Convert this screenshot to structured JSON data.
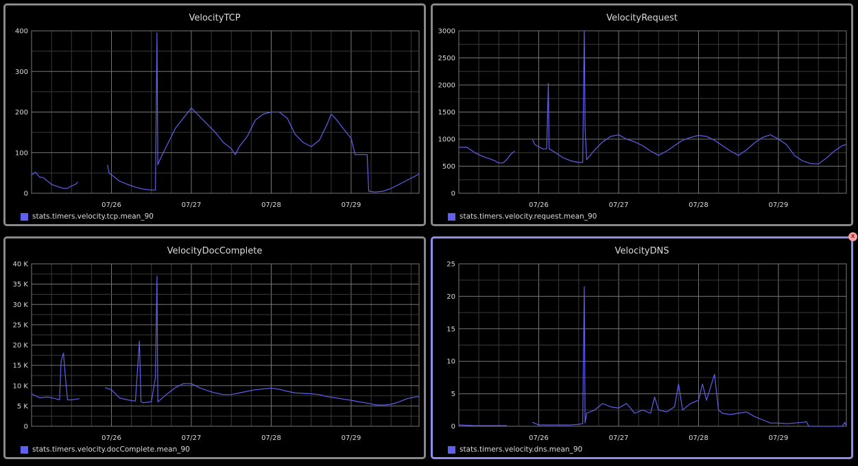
{
  "colors": {
    "series": "#6060f0",
    "grid": "#555555",
    "text": "#dcdcdc",
    "border": "#8a8a8a",
    "border_active": "#8f8fee"
  },
  "close_icon": "close-icon",
  "chart_data": [
    {
      "type": "line",
      "title": "VelocityTCP",
      "legend": "stats.timers.velocity.tcp.mean_90",
      "xticks": [
        "07/26",
        "07/27",
        "07/28",
        "07/29"
      ],
      "yticks": [
        "0",
        "100",
        "200",
        "300",
        "400"
      ],
      "ylim": [
        0,
        400
      ],
      "xrange_days": [
        25.0,
        29.85
      ],
      "grid": true,
      "series": [
        {
          "values": [
            [
              25.0,
              45
            ],
            [
              25.05,
              52
            ],
            [
              25.1,
              40
            ],
            [
              25.15,
              38
            ],
            [
              25.2,
              30
            ],
            [
              25.25,
              22
            ],
            [
              25.3,
              18
            ],
            [
              25.35,
              15
            ],
            [
              25.4,
              12
            ],
            [
              25.45,
              12
            ],
            [
              25.5,
              18
            ],
            [
              25.55,
              22
            ],
            [
              25.58,
              28
            ],
            [
              25.6,
              null
            ],
            [
              25.95,
              70
            ],
            [
              25.97,
              50
            ],
            [
              26.05,
              38
            ],
            [
              26.1,
              30
            ],
            [
              26.2,
              22
            ],
            [
              26.3,
              15
            ],
            [
              26.4,
              10
            ],
            [
              26.5,
              8
            ],
            [
              26.55,
              8
            ],
            [
              26.57,
              395
            ],
            [
              26.58,
              70
            ],
            [
              26.6,
              80
            ],
            [
              26.7,
              120
            ],
            [
              26.8,
              160
            ],
            [
              26.9,
              185
            ],
            [
              27.0,
              210
            ],
            [
              27.1,
              190
            ],
            [
              27.2,
              170
            ],
            [
              27.3,
              150
            ],
            [
              27.4,
              125
            ],
            [
              27.5,
              110
            ],
            [
              27.55,
              95
            ],
            [
              27.6,
              115
            ],
            [
              27.7,
              140
            ],
            [
              27.8,
              180
            ],
            [
              27.9,
              195
            ],
            [
              28.0,
              200
            ],
            [
              28.1,
              200
            ],
            [
              28.2,
              185
            ],
            [
              28.3,
              145
            ],
            [
              28.4,
              125
            ],
            [
              28.5,
              115
            ],
            [
              28.6,
              130
            ],
            [
              28.7,
              170
            ],
            [
              28.75,
              195
            ],
            [
              28.8,
              185
            ],
            [
              28.9,
              160
            ],
            [
              29.0,
              135
            ],
            [
              29.05,
              95
            ],
            [
              29.15,
              95
            ],
            [
              29.2,
              95
            ],
            [
              29.22,
              5
            ],
            [
              29.3,
              3
            ],
            [
              29.4,
              5
            ],
            [
              29.5,
              12
            ],
            [
              29.6,
              22
            ],
            [
              29.7,
              32
            ],
            [
              29.8,
              42
            ],
            [
              29.85,
              48
            ]
          ]
        }
      ]
    },
    {
      "type": "line",
      "title": "VelocityRequest",
      "legend": "stats.timers.velocity.request.mean_90",
      "xticks": [
        "07/26",
        "07/27",
        "07/28",
        "07/29"
      ],
      "yticks": [
        "0",
        "500",
        "1000",
        "1500",
        "2000",
        "2500",
        "3000"
      ],
      "ylim": [
        0,
        3000
      ],
      "xrange_days": [
        25.0,
        29.85
      ],
      "grid": true,
      "series": [
        {
          "values": [
            [
              25.0,
              850
            ],
            [
              25.1,
              850
            ],
            [
              25.2,
              750
            ],
            [
              25.3,
              680
            ],
            [
              25.4,
              630
            ],
            [
              25.45,
              600
            ],
            [
              25.5,
              560
            ],
            [
              25.55,
              560
            ],
            [
              25.6,
              620
            ],
            [
              25.65,
              720
            ],
            [
              25.7,
              780
            ],
            [
              25.72,
              null
            ],
            [
              25.92,
              1000
            ],
            [
              25.95,
              900
            ],
            [
              26.0,
              860
            ],
            [
              26.05,
              820
            ],
            [
              26.1,
              820
            ],
            [
              26.12,
              2030
            ],
            [
              26.13,
              820
            ],
            [
              26.2,
              760
            ],
            [
              26.3,
              660
            ],
            [
              26.4,
              600
            ],
            [
              26.5,
              570
            ],
            [
              26.55,
              570
            ],
            [
              26.57,
              3000
            ],
            [
              26.58,
              1200
            ],
            [
              26.6,
              620
            ],
            [
              26.7,
              800
            ],
            [
              26.8,
              950
            ],
            [
              26.9,
              1050
            ],
            [
              27.0,
              1080
            ],
            [
              27.1,
              1000
            ],
            [
              27.2,
              950
            ],
            [
              27.3,
              880
            ],
            [
              27.4,
              780
            ],
            [
              27.5,
              700
            ],
            [
              27.6,
              780
            ],
            [
              27.7,
              880
            ],
            [
              27.8,
              980
            ],
            [
              27.9,
              1030
            ],
            [
              28.0,
              1070
            ],
            [
              28.1,
              1050
            ],
            [
              28.2,
              980
            ],
            [
              28.3,
              880
            ],
            [
              28.4,
              780
            ],
            [
              28.5,
              700
            ],
            [
              28.6,
              800
            ],
            [
              28.7,
              930
            ],
            [
              28.8,
              1030
            ],
            [
              28.9,
              1080
            ],
            [
              29.0,
              1000
            ],
            [
              29.1,
              900
            ],
            [
              29.2,
              700
            ],
            [
              29.3,
              600
            ],
            [
              29.4,
              550
            ],
            [
              29.5,
              540
            ],
            [
              29.6,
              650
            ],
            [
              29.7,
              780
            ],
            [
              29.8,
              880
            ],
            [
              29.85,
              900
            ]
          ]
        }
      ]
    },
    {
      "type": "line",
      "title": "VelocityDocComplete",
      "legend": "stats.timers.velocity.docComplete.mean_90",
      "xticks": [
        "07/26",
        "07/27",
        "07/28",
        "07/29"
      ],
      "yticks": [
        "0",
        "5 K",
        "10 K",
        "15 K",
        "20 K",
        "25 K",
        "30 K",
        "35 K",
        "40 K"
      ],
      "ylim": [
        0,
        40000
      ],
      "xrange_days": [
        25.0,
        29.85
      ],
      "grid": true,
      "series": [
        {
          "values": [
            [
              25.0,
              8000
            ],
            [
              25.1,
              7000
            ],
            [
              25.2,
              7200
            ],
            [
              25.3,
              6800
            ],
            [
              25.35,
              6500
            ],
            [
              25.37,
              16000
            ],
            [
              25.4,
              18000
            ],
            [
              25.42,
              13000
            ],
            [
              25.45,
              6500
            ],
            [
              25.5,
              6500
            ],
            [
              25.6,
              6800
            ],
            [
              25.62,
              null
            ],
            [
              25.92,
              9500
            ],
            [
              26.0,
              9000
            ],
            [
              26.1,
              7000
            ],
            [
              26.2,
              6500
            ],
            [
              26.3,
              6200
            ],
            [
              26.35,
              21000
            ],
            [
              26.37,
              6000
            ],
            [
              26.4,
              5800
            ],
            [
              26.5,
              6000
            ],
            [
              26.55,
              12000
            ],
            [
              26.57,
              37000
            ],
            [
              26.58,
              6000
            ],
            [
              26.7,
              8000
            ],
            [
              26.8,
              9500
            ],
            [
              26.9,
              10500
            ],
            [
              27.0,
              10500
            ],
            [
              27.1,
              9500
            ],
            [
              27.2,
              8800
            ],
            [
              27.3,
              8200
            ],
            [
              27.4,
              7800
            ],
            [
              27.5,
              7800
            ],
            [
              27.6,
              8200
            ],
            [
              27.7,
              8600
            ],
            [
              27.8,
              9000
            ],
            [
              27.9,
              9200
            ],
            [
              28.0,
              9400
            ],
            [
              28.1,
              9100
            ],
            [
              28.2,
              8600
            ],
            [
              28.3,
              8200
            ],
            [
              28.4,
              8100
            ],
            [
              28.5,
              8000
            ],
            [
              28.6,
              7800
            ],
            [
              28.7,
              7300
            ],
            [
              28.8,
              7000
            ],
            [
              28.9,
              6700
            ],
            [
              29.0,
              6400
            ],
            [
              29.1,
              6000
            ],
            [
              29.2,
              5700
            ],
            [
              29.3,
              5300
            ],
            [
              29.4,
              5200
            ],
            [
              29.5,
              5400
            ],
            [
              29.6,
              6000
            ],
            [
              29.7,
              6800
            ],
            [
              29.8,
              7200
            ],
            [
              29.85,
              7300
            ]
          ]
        }
      ]
    },
    {
      "type": "line",
      "title": "VelocityDNS",
      "legend": "stats.timers.velocity.dns.mean_90",
      "xticks": [
        "07/26",
        "07/27",
        "07/28",
        "07/29"
      ],
      "yticks": [
        "0",
        "5",
        "10",
        "15",
        "20",
        "25"
      ],
      "ylim": [
        0,
        25
      ],
      "xrange_days": [
        25.0,
        29.85
      ],
      "grid": true,
      "series": [
        {
          "values": [
            [
              25.0,
              0.2
            ],
            [
              25.2,
              0.1
            ],
            [
              25.4,
              0.1
            ],
            [
              25.6,
              0.1
            ],
            [
              25.62,
              null
            ],
            [
              25.92,
              0.6
            ],
            [
              26.0,
              0.2
            ],
            [
              26.2,
              0.2
            ],
            [
              26.4,
              0.2
            ],
            [
              26.5,
              0.3
            ],
            [
              26.55,
              0.4
            ],
            [
              26.57,
              21.5
            ],
            [
              26.58,
              0.5
            ],
            [
              26.6,
              2.0
            ],
            [
              26.7,
              2.5
            ],
            [
              26.8,
              3.5
            ],
            [
              26.9,
              3.0
            ],
            [
              27.0,
              2.8
            ],
            [
              27.1,
              3.5
            ],
            [
              27.2,
              2.0
            ],
            [
              27.3,
              2.5
            ],
            [
              27.4,
              2.0
            ],
            [
              27.45,
              4.5
            ],
            [
              27.5,
              2.5
            ],
            [
              27.6,
              2.2
            ],
            [
              27.7,
              3.0
            ],
            [
              27.75,
              6.5
            ],
            [
              27.8,
              2.5
            ],
            [
              27.9,
              3.5
            ],
            [
              28.0,
              4.0
            ],
            [
              28.05,
              6.5
            ],
            [
              28.1,
              4.0
            ],
            [
              28.2,
              8.0
            ],
            [
              28.25,
              2.5
            ],
            [
              28.3,
              2.0
            ],
            [
              28.4,
              1.8
            ],
            [
              28.5,
              2.0
            ],
            [
              28.6,
              2.2
            ],
            [
              28.7,
              1.5
            ],
            [
              28.8,
              1.0
            ],
            [
              28.9,
              0.5
            ],
            [
              29.0,
              0.5
            ],
            [
              29.1,
              0.4
            ],
            [
              29.2,
              0.5
            ],
            [
              29.3,
              0.6
            ],
            [
              29.35,
              0.7
            ],
            [
              29.38,
              0.0
            ],
            [
              29.5,
              0.0
            ],
            [
              29.6,
              0.0
            ],
            [
              29.7,
              0.0
            ],
            [
              29.8,
              0.0
            ],
            [
              29.83,
              0.6
            ],
            [
              29.85,
              0.1
            ]
          ]
        }
      ]
    }
  ]
}
